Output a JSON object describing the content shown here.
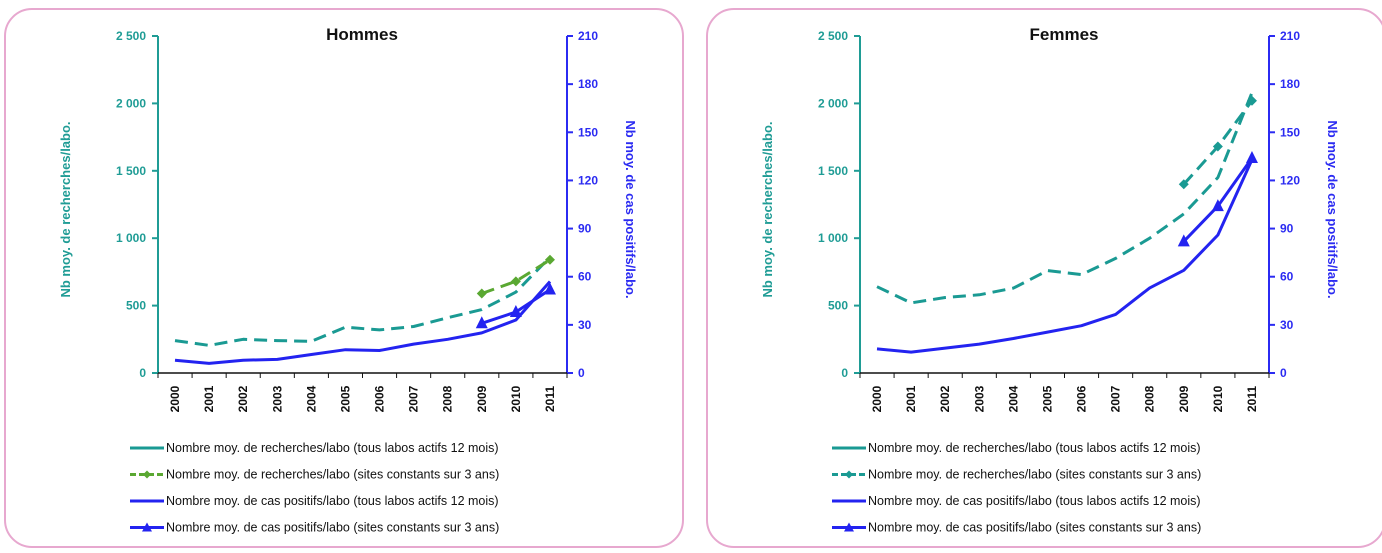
{
  "colors": {
    "teal": "#1a9a93",
    "green_dash": "#5aa832",
    "blue": "#2323f0",
    "axis_left": "#1f9c95",
    "axis_right": "#2b2bf2",
    "border": "#e7a8cf"
  },
  "legend": [
    "Nombre moy. de recherches/labo (tous labos actifs 12 mois)",
    "Nombre moy. de recherches/labo (sites constants sur 3 ans)",
    "Nombre moy. de cas positifs/labo (tous labos actifs 12 mois)",
    "Nombre moy. de cas positifs/labo (sites constants sur 3 ans)"
  ],
  "chart_data": [
    {
      "type": "line",
      "title": "Hommes",
      "ylabel": "Nb moy. de recherches/labo.",
      "y2label": "Nb moy. de cas positifs/labo.",
      "ylim": [
        0,
        2500
      ],
      "y2lim": [
        0,
        210
      ],
      "yticks": [
        "0",
        "500",
        "1 000",
        "1 500",
        "2 000",
        "2 500"
      ],
      "y2ticks": [
        "0",
        "30",
        "60",
        "90",
        "120",
        "150",
        "180",
        "210"
      ],
      "categories": [
        "2000",
        "2001",
        "2002",
        "2003",
        "2004",
        "2005",
        "2006",
        "2007",
        "2008",
        "2009",
        "2010",
        "2011"
      ],
      "legend_position": "bottom",
      "series": [
        {
          "name": "Nombre moy. de recherches/labo (tous labos actifs 12 mois)",
          "axis": "left",
          "style": "dashed",
          "color": "#1a9a93",
          "x": [
            "2000",
            "2001",
            "2002",
            "2003",
            "2004",
            "2005",
            "2006",
            "2007",
            "2008",
            "2009",
            "2010",
            "2011"
          ],
          "values": [
            240,
            205,
            250,
            240,
            235,
            340,
            320,
            345,
            410,
            470,
            600,
            860
          ]
        },
        {
          "name": "Nombre moy. de recherches/labo (sites constants sur 3 ans)",
          "axis": "left",
          "style": "dashed-marker",
          "color": "#5aa832",
          "x": [
            "2009",
            "2010",
            "2011"
          ],
          "values": [
            590,
            680,
            840
          ]
        },
        {
          "name": "Nombre moy. de cas positifs/labo (tous labos actifs 12 mois)",
          "axis": "right",
          "style": "solid",
          "color": "#2323f0",
          "x": [
            "2000",
            "2001",
            "2002",
            "2003",
            "2004",
            "2005",
            "2006",
            "2007",
            "2008",
            "2009",
            "2010",
            "2011"
          ],
          "values": [
            8,
            6,
            8,
            8.5,
            11.5,
            14.5,
            14,
            18,
            21,
            25,
            33,
            57
          ]
        },
        {
          "name": "Nombre moy. de cas positifs/labo (sites constants sur 3 ans)",
          "axis": "right",
          "style": "solid-marker",
          "color": "#2323f0",
          "x": [
            "2009",
            "2010",
            "2011"
          ],
          "values": [
            31,
            38,
            52
          ]
        }
      ]
    },
    {
      "type": "line",
      "title": "Femmes",
      "ylabel": "Nb moy. de recherches/labo.",
      "y2label": "Nb moy. de cas positifs/labo.",
      "ylim": [
        0,
        2500
      ],
      "y2lim": [
        0,
        210
      ],
      "yticks": [
        "0",
        "500",
        "1 000",
        "1 500",
        "2 000",
        "2 500"
      ],
      "y2ticks": [
        "0",
        "30",
        "60",
        "90",
        "120",
        "150",
        "180",
        "210"
      ],
      "categories": [
        "2000",
        "2001",
        "2002",
        "2003",
        "2004",
        "2005",
        "2006",
        "2007",
        "2008",
        "2009",
        "2010",
        "2011"
      ],
      "legend_position": "bottom",
      "series": [
        {
          "name": "Nombre moy. de recherches/labo (tous labos actifs 12 mois)",
          "axis": "left",
          "style": "dashed",
          "color": "#1a9a93",
          "x": [
            "2000",
            "2001",
            "2002",
            "2003",
            "2004",
            "2005",
            "2006",
            "2007",
            "2008",
            "2009",
            "2010",
            "2011"
          ],
          "values": [
            640,
            520,
            560,
            580,
            630,
            760,
            730,
            850,
            1000,
            1180,
            1450,
            2080
          ]
        },
        {
          "name": "Nombre moy. de recherches/labo (sites constants sur 3 ans)",
          "axis": "left",
          "style": "dashed-marker",
          "color": "#1a9a93",
          "x": [
            "2009",
            "2010",
            "2011"
          ],
          "values": [
            1400,
            1680,
            2020
          ]
        },
        {
          "name": "Nombre moy. de cas positifs/labo (tous labos actifs 12 mois)",
          "axis": "right",
          "style": "solid",
          "color": "#2323f0",
          "x": [
            "2000",
            "2001",
            "2002",
            "2003",
            "2004",
            "2005",
            "2006",
            "2007",
            "2008",
            "2009",
            "2010",
            "2011"
          ],
          "values": [
            15,
            13,
            15.5,
            18,
            21.5,
            25.5,
            29.5,
            36.5,
            53,
            64,
            86,
            133
          ]
        },
        {
          "name": "Nombre moy. de cas positifs/labo (sites constants sur 3 ans)",
          "axis": "right",
          "style": "solid-marker",
          "color": "#2323f0",
          "x": [
            "2009",
            "2010",
            "2011"
          ],
          "values": [
            82,
            104,
            134
          ]
        }
      ]
    }
  ]
}
